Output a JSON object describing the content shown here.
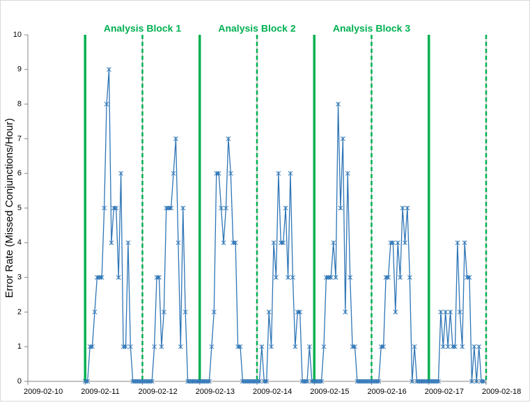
{
  "chart_data": {
    "type": "line",
    "y_label": "Error Rate  (Missed Conjunctions/Hour)",
    "ylim": [
      0,
      10
    ],
    "yticks": [
      0,
      1,
      2,
      3,
      4,
      5,
      6,
      7,
      8,
      9,
      10
    ],
    "xlim": [
      "2009-02-10",
      "2009-02-18"
    ],
    "xticks": [
      "2009-02-10",
      "2009-02-11",
      "2009-02-12",
      "2009-02-13",
      "2009-02-14",
      "2009-02-15",
      "2009-02-16",
      "2009-02-17",
      "2009-02-18"
    ],
    "grid": true,
    "annotations": [
      {
        "text": "Analysis Block 1",
        "x": "2009-02-12"
      },
      {
        "text": "Analysis Block 2",
        "x": "2009-02-14"
      },
      {
        "text": "Analysis Block 3",
        "x": "2009-02-16"
      }
    ],
    "vlines": [
      {
        "x": "2009-02-11",
        "style": "solid",
        "color": "#00b050"
      },
      {
        "x": "2009-02-12",
        "style": "dashed",
        "color": "#00b050"
      },
      {
        "x": "2009-02-13",
        "style": "solid",
        "color": "#00b050"
      },
      {
        "x": "2009-02-14",
        "style": "dashed",
        "color": "#00b050"
      },
      {
        "x": "2009-02-15",
        "style": "solid",
        "color": "#00b050"
      },
      {
        "x": "2009-02-16",
        "style": "dashed",
        "color": "#00b050"
      },
      {
        "x": "2009-02-17",
        "style": "solid",
        "color": "#00b050"
      },
      {
        "x": "2009-02-18",
        "style": "dashed",
        "color": "#00b050"
      }
    ],
    "x": [
      "2009-02-11 00:00",
      "2009-02-11 01:00",
      "2009-02-11 02:00",
      "2009-02-11 03:00",
      "2009-02-11 04:00",
      "2009-02-11 05:00",
      "2009-02-11 06:00",
      "2009-02-11 07:00",
      "2009-02-11 08:00",
      "2009-02-11 09:00",
      "2009-02-11 10:00",
      "2009-02-11 11:00",
      "2009-02-11 12:00",
      "2009-02-11 13:00",
      "2009-02-11 14:00",
      "2009-02-11 15:00",
      "2009-02-11 16:00",
      "2009-02-11 17:00",
      "2009-02-11 18:00",
      "2009-02-11 19:00",
      "2009-02-11 20:00",
      "2009-02-11 21:00",
      "2009-02-11 22:00",
      "2009-02-11 23:00",
      "2009-02-12 00:00",
      "2009-02-12 01:00",
      "2009-02-12 02:00",
      "2009-02-12 03:00",
      "2009-02-12 04:00",
      "2009-02-12 05:00",
      "2009-02-12 06:00",
      "2009-02-12 07:00",
      "2009-02-12 08:00",
      "2009-02-12 09:00",
      "2009-02-12 10:00",
      "2009-02-12 11:00",
      "2009-02-12 12:00",
      "2009-02-12 13:00",
      "2009-02-12 14:00",
      "2009-02-12 15:00",
      "2009-02-12 16:00",
      "2009-02-12 17:00",
      "2009-02-12 18:00",
      "2009-02-12 19:00",
      "2009-02-12 20:00",
      "2009-02-12 21:00",
      "2009-02-12 22:00",
      "2009-02-12 23:00",
      "2009-02-13 00:00",
      "2009-02-13 01:00",
      "2009-02-13 02:00",
      "2009-02-13 03:00",
      "2009-02-13 04:00",
      "2009-02-13 05:00",
      "2009-02-13 06:00",
      "2009-02-13 07:00",
      "2009-02-13 08:00",
      "2009-02-13 09:00",
      "2009-02-13 10:00",
      "2009-02-13 11:00",
      "2009-02-13 12:00",
      "2009-02-13 13:00",
      "2009-02-13 14:00",
      "2009-02-13 15:00",
      "2009-02-13 16:00",
      "2009-02-13 17:00",
      "2009-02-13 18:00",
      "2009-02-13 19:00",
      "2009-02-13 20:00",
      "2009-02-13 21:00",
      "2009-02-13 22:00",
      "2009-02-13 23:00",
      "2009-02-14 00:00",
      "2009-02-14 01:00",
      "2009-02-14 02:00",
      "2009-02-14 03:00",
      "2009-02-14 04:00",
      "2009-02-14 05:00",
      "2009-02-14 06:00",
      "2009-02-14 07:00",
      "2009-02-14 08:00",
      "2009-02-14 09:00",
      "2009-02-14 10:00",
      "2009-02-14 11:00",
      "2009-02-14 12:00",
      "2009-02-14 13:00",
      "2009-02-14 14:00",
      "2009-02-14 15:00",
      "2009-02-14 16:00",
      "2009-02-14 17:00",
      "2009-02-14 18:00",
      "2009-02-14 19:00",
      "2009-02-14 20:00",
      "2009-02-14 21:00",
      "2009-02-14 22:00",
      "2009-02-14 23:00",
      "2009-02-15 00:00",
      "2009-02-15 01:00",
      "2009-02-15 02:00",
      "2009-02-15 03:00",
      "2009-02-15 04:00",
      "2009-02-15 05:00",
      "2009-02-15 06:00",
      "2009-02-15 07:00",
      "2009-02-15 08:00",
      "2009-02-15 09:00",
      "2009-02-15 10:00",
      "2009-02-15 11:00",
      "2009-02-15 12:00",
      "2009-02-15 13:00",
      "2009-02-15 14:00",
      "2009-02-15 15:00",
      "2009-02-15 16:00",
      "2009-02-15 17:00",
      "2009-02-15 18:00",
      "2009-02-15 19:00",
      "2009-02-15 20:00",
      "2009-02-15 21:00",
      "2009-02-15 22:00",
      "2009-02-15 23:00",
      "2009-02-16 00:00",
      "2009-02-16 01:00",
      "2009-02-16 02:00",
      "2009-02-16 03:00",
      "2009-02-16 04:00",
      "2009-02-16 05:00",
      "2009-02-16 06:00",
      "2009-02-16 07:00",
      "2009-02-16 08:00",
      "2009-02-16 09:00",
      "2009-02-16 10:00",
      "2009-02-16 11:00",
      "2009-02-16 12:00",
      "2009-02-16 13:00",
      "2009-02-16 14:00",
      "2009-02-16 15:00",
      "2009-02-16 16:00",
      "2009-02-16 17:00",
      "2009-02-16 18:00",
      "2009-02-16 19:00",
      "2009-02-16 20:00",
      "2009-02-16 21:00",
      "2009-02-16 22:00",
      "2009-02-16 23:00",
      "2009-02-17 00:00",
      "2009-02-17 01:00",
      "2009-02-17 02:00",
      "2009-02-17 03:00",
      "2009-02-17 04:00",
      "2009-02-17 05:00",
      "2009-02-17 06:00",
      "2009-02-17 07:00",
      "2009-02-17 08:00",
      "2009-02-17 09:00",
      "2009-02-17 10:00",
      "2009-02-17 11:00",
      "2009-02-17 12:00",
      "2009-02-17 13:00",
      "2009-02-17 14:00",
      "2009-02-17 15:00",
      "2009-02-17 16:00",
      "2009-02-17 17:00",
      "2009-02-17 18:00",
      "2009-02-17 19:00",
      "2009-02-17 20:00",
      "2009-02-17 21:00",
      "2009-02-17 22:00",
      "2009-02-17 23:00"
    ],
    "series": [
      {
        "color": "#2e75b6",
        "values": [
          0,
          0,
          1,
          1,
          2,
          3,
          3,
          3,
          5,
          8,
          9,
          4,
          5,
          5,
          3,
          6,
          1,
          1,
          4,
          1,
          0,
          0,
          0,
          0,
          0,
          0,
          0,
          0,
          0,
          1,
          3,
          3,
          1,
          2,
          5,
          5,
          5,
          6,
          7,
          4,
          1,
          5,
          2,
          0,
          0,
          0,
          0,
          0,
          0,
          0,
          0,
          0,
          0,
          1,
          2,
          6,
          6,
          5,
          4,
          5,
          7,
          6,
          4,
          4,
          1,
          1,
          0,
          0,
          0,
          0,
          0,
          0,
          0,
          0,
          1,
          0,
          0,
          2,
          1,
          4,
          3,
          6,
          4,
          4,
          5,
          3,
          6,
          3,
          1,
          2,
          2,
          0,
          0,
          0,
          1,
          0,
          0,
          0,
          0,
          0,
          1,
          3,
          3,
          3,
          4,
          3,
          8,
          5,
          7,
          2,
          6,
          3,
          1,
          1,
          0,
          0,
          0,
          0,
          0,
          0,
          0,
          0,
          0,
          0,
          1,
          1,
          3,
          3,
          4,
          4,
          2,
          4,
          3,
          5,
          4,
          5,
          3,
          0,
          1,
          0,
          0,
          0,
          0,
          0,
          0,
          0,
          0,
          0,
          0,
          2,
          1,
          2,
          1,
          2,
          1,
          1,
          4,
          2,
          1,
          4,
          3,
          3,
          0,
          1,
          0,
          1,
          0,
          0
        ]
      }
    ]
  }
}
